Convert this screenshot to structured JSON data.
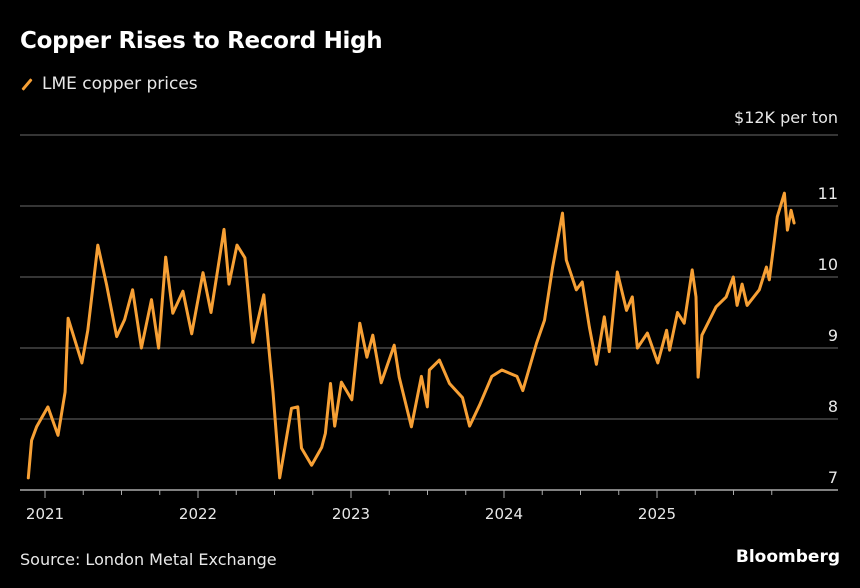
{
  "colors": {
    "line": "#f7a035",
    "grid": "#555555",
    "background": "#000000"
  },
  "chart_data": {
    "type": "line",
    "title": "Copper Rises to Record High",
    "ylabel": "$12K per ton",
    "ylim": [
      7,
      12
    ],
    "yticks": [
      7,
      8,
      9,
      10,
      11
    ],
    "xticks": [
      "2021",
      "2022",
      "2023",
      "2024",
      "2025"
    ],
    "grid": true,
    "legend_placement": "top-left",
    "series": [
      {
        "name": "LME copper prices",
        "points": [
          [
            "2020-11-22",
            7.17
          ],
          [
            "2020-11-30",
            7.7
          ],
          [
            "2020-12-12",
            7.89
          ],
          [
            "2021-01-08",
            8.17
          ],
          [
            "2021-02-01",
            7.77
          ],
          [
            "2021-02-18",
            8.38
          ],
          [
            "2021-02-25",
            9.42
          ],
          [
            "2021-03-30",
            8.79
          ],
          [
            "2021-04-13",
            9.25
          ],
          [
            "2021-05-07",
            10.45
          ],
          [
            "2021-05-28",
            9.89
          ],
          [
            "2021-06-21",
            9.16
          ],
          [
            "2021-07-10",
            9.4
          ],
          [
            "2021-07-29",
            9.82
          ],
          [
            "2021-08-19",
            9.0
          ],
          [
            "2021-09-12",
            9.68
          ],
          [
            "2021-09-29",
            9.0
          ],
          [
            "2021-10-16",
            10.28
          ],
          [
            "2021-11-02",
            9.49
          ],
          [
            "2021-11-26",
            9.8
          ],
          [
            "2021-12-17",
            9.2
          ],
          [
            "2022-01-13",
            10.06
          ],
          [
            "2022-02-01",
            9.5
          ],
          [
            "2022-03-04",
            10.67
          ],
          [
            "2022-03-16",
            9.9
          ],
          [
            "2022-04-04",
            10.45
          ],
          [
            "2022-04-23",
            10.27
          ],
          [
            "2022-05-12",
            9.08
          ],
          [
            "2022-06-07",
            9.75
          ],
          [
            "2022-06-29",
            8.38
          ],
          [
            "2022-07-15",
            7.17
          ],
          [
            "2022-08-12",
            8.15
          ],
          [
            "2022-08-27",
            8.17
          ],
          [
            "2022-09-05",
            7.59
          ],
          [
            "2022-09-29",
            7.35
          ],
          [
            "2022-10-23",
            7.6
          ],
          [
            "2022-11-01",
            7.8
          ],
          [
            "2022-11-13",
            8.5
          ],
          [
            "2022-11-23",
            7.9
          ],
          [
            "2022-12-09",
            8.52
          ],
          [
            "2023-01-03",
            8.27
          ],
          [
            "2023-01-22",
            9.35
          ],
          [
            "2023-02-08",
            8.87
          ],
          [
            "2023-02-22",
            9.18
          ],
          [
            "2023-03-14",
            8.51
          ],
          [
            "2023-04-14",
            9.04
          ],
          [
            "2023-04-26",
            8.59
          ],
          [
            "2023-05-25",
            7.89
          ],
          [
            "2023-06-18",
            8.6
          ],
          [
            "2023-07-02",
            8.17
          ],
          [
            "2023-07-07",
            8.69
          ],
          [
            "2023-07-31",
            8.83
          ],
          [
            "2023-08-24",
            8.5
          ],
          [
            "2023-09-24",
            8.3
          ],
          [
            "2023-10-11",
            7.9
          ],
          [
            "2023-11-04",
            8.2
          ],
          [
            "2023-12-03",
            8.6
          ],
          [
            "2023-12-27",
            8.69
          ],
          [
            "2024-02-01",
            8.6
          ],
          [
            "2024-02-15",
            8.4
          ],
          [
            "2024-03-19",
            9.07
          ],
          [
            "2024-04-07",
            9.39
          ],
          [
            "2024-04-26",
            10.13
          ],
          [
            "2024-05-20",
            10.9
          ],
          [
            "2024-05-29",
            10.24
          ],
          [
            "2024-06-22",
            9.82
          ],
          [
            "2024-07-06",
            9.93
          ],
          [
            "2024-07-23",
            9.3
          ],
          [
            "2024-08-09",
            8.77
          ],
          [
            "2024-08-28",
            9.44
          ],
          [
            "2024-09-09",
            8.95
          ],
          [
            "2024-09-28",
            10.07
          ],
          [
            "2024-10-20",
            9.53
          ],
          [
            "2024-11-03",
            9.72
          ],
          [
            "2024-11-15",
            9.0
          ],
          [
            "2024-12-09",
            9.21
          ],
          [
            "2025-01-03",
            8.79
          ],
          [
            "2025-01-24",
            9.25
          ],
          [
            "2025-01-31",
            8.97
          ],
          [
            "2025-02-19",
            9.5
          ],
          [
            "2025-03-07",
            9.35
          ],
          [
            "2025-03-26",
            10.1
          ],
          [
            "2025-04-04",
            9.72
          ],
          [
            "2025-04-09",
            8.59
          ],
          [
            "2025-04-18",
            9.18
          ],
          [
            "2025-05-22",
            9.58
          ],
          [
            "2025-06-15",
            9.72
          ],
          [
            "2025-07-02",
            10.0
          ],
          [
            "2025-07-11",
            9.6
          ],
          [
            "2025-07-23",
            9.9
          ],
          [
            "2025-08-04",
            9.6
          ],
          [
            "2025-09-02",
            9.82
          ],
          [
            "2025-09-19",
            10.14
          ],
          [
            "2025-09-26",
            9.96
          ],
          [
            "2025-10-08",
            10.52
          ],
          [
            "2025-10-15",
            10.85
          ],
          [
            "2025-11-01",
            11.18
          ],
          [
            "2025-11-08",
            10.66
          ],
          [
            "2025-11-17",
            10.94
          ],
          [
            "2025-11-24",
            10.76
          ]
        ]
      }
    ]
  },
  "footer": {
    "source": "Source: London Metal Exchange",
    "brand": "Bloomberg"
  }
}
